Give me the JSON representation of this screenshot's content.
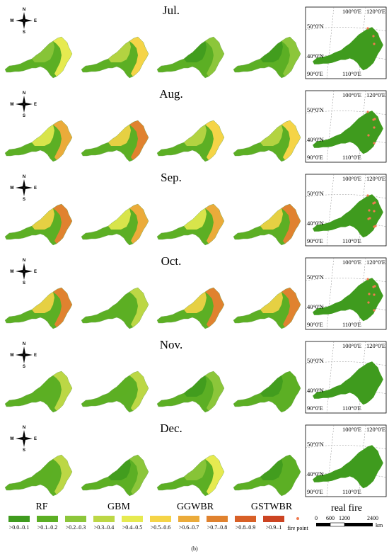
{
  "figure": {
    "sub_caption": "(b)",
    "models": [
      "RF",
      "GBM",
      "GGWBR",
      "GSTWBR"
    ],
    "real_fire_label": "real fire",
    "months": [
      {
        "name": "Jul.",
        "levels": [
          4,
          5,
          2,
          2
        ],
        "fires": 3
      },
      {
        "name": "Aug.",
        "levels": [
          6,
          7,
          5,
          5
        ],
        "fires": 6
      },
      {
        "name": "Sep.",
        "levels": [
          7,
          6,
          6,
          7
        ],
        "fires": 9
      },
      {
        "name": "Oct.",
        "levels": [
          7,
          3,
          7,
          7
        ],
        "fires": 7
      },
      {
        "name": "Nov.",
        "levels": [
          3,
          3,
          2,
          1
        ],
        "fires": 0
      },
      {
        "name": "Dec.",
        "levels": [
          3,
          2,
          4,
          1
        ],
        "fires": 0
      }
    ]
  },
  "compass": {
    "n": "N",
    "s": "S",
    "e": "E",
    "w": "W"
  },
  "grid_labels": {
    "lon_top_1": "100°0'E",
    "lon_top_2": "120°0'E",
    "lat_top": "50°0'N",
    "lat_mid": "40°0'N",
    "lon_bottom_1": "90°0'E",
    "lon_bottom_2": "110°0'E"
  },
  "legend": {
    "classes": [
      {
        "label": ">0.0–0.1",
        "color": "#3f9b1e"
      },
      {
        "label": ">0.1–0.2",
        "color": "#5caf24"
      },
      {
        "label": ">0.2–0.3",
        "color": "#8cc63a"
      },
      {
        "label": ">0.3–0.4",
        "color": "#bcd745"
      },
      {
        "label": ">0.4–0.5",
        "color": "#e6ea50"
      },
      {
        "label": ">0.5–0.6",
        "color": "#f5d447"
      },
      {
        "label": ">0.6–0.7",
        "color": "#ebab3a"
      },
      {
        "label": ">0.7–0.8",
        "color": "#e0822f"
      },
      {
        "label": ">0.8–0.9",
        "color": "#d86027"
      },
      {
        "label": ">0.9–1",
        "color": "#cc4422"
      }
    ],
    "fire_point_label": "fire point",
    "fire_point_color": "#f07a50"
  },
  "scale_bar": {
    "ticks": [
      "0",
      "600",
      "1200",
      "2400"
    ],
    "unit": "km"
  }
}
